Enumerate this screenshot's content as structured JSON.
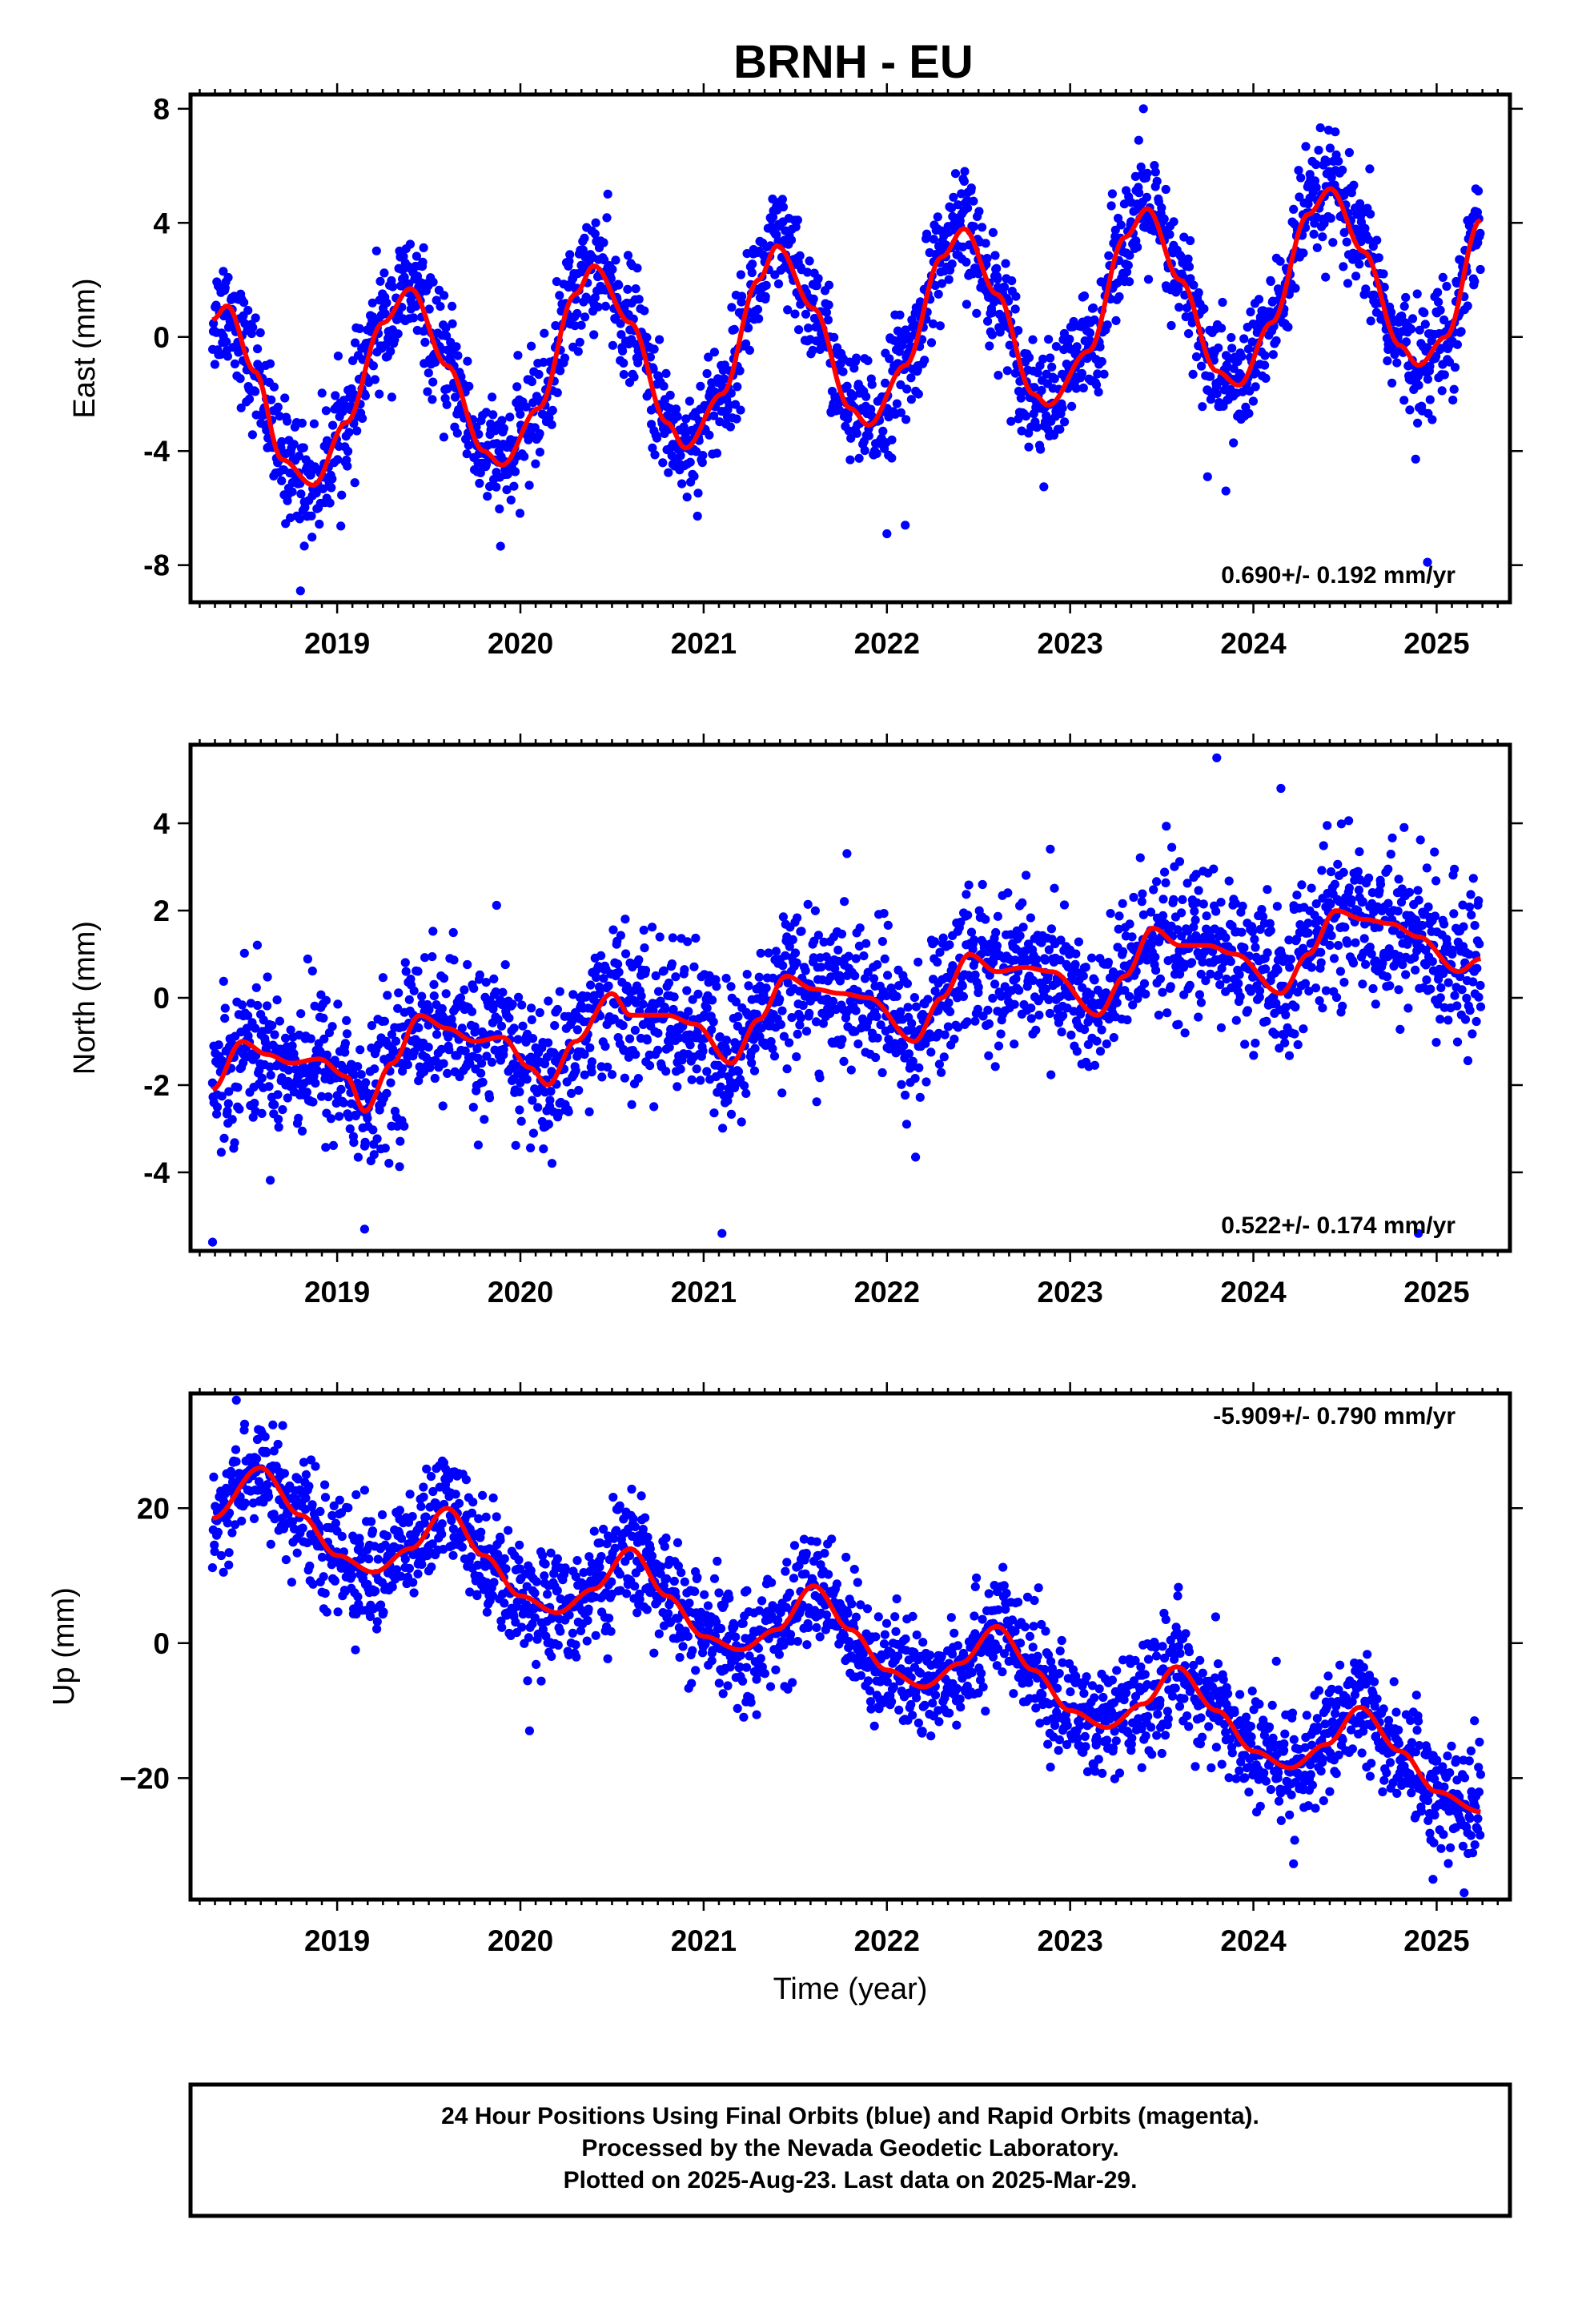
{
  "title": "BRNH - EU",
  "footer": {
    "line1": "24 Hour Positions Using Final Orbits (blue) and Rapid Orbits (magenta).",
    "line2": "Processed by the Nevada Geodetic Laboratory.",
    "line3": "Plotted on 2025-Aug-23. Last data on 2025-Mar-29."
  },
  "colors": {
    "final_orbits": "#0000ff",
    "rapid_orbits": "#ff00ff",
    "fit": "#ff0000"
  },
  "chart_data": [
    {
      "type": "scatter",
      "panel": "east",
      "ylabel": "East (mm)",
      "xlabel": "",
      "x_tick_labels": [
        "2019",
        "2020",
        "2021",
        "2022",
        "2023",
        "2024",
        "2025"
      ],
      "y_tick_labels": [
        "8",
        "4",
        "0",
        "-4",
        "-8"
      ],
      "y_ticks": [
        8,
        4,
        0,
        -4,
        -8
      ],
      "xlim": [
        2018.2,
        2025.4
      ],
      "ylim": [
        -9.3,
        8.5
      ],
      "rate_text": "0.690+/- 0.192 mm/yr",
      "data_range": [
        2018.32,
        2025.24
      ],
      "trend": -0.35,
      "fit_points": [
        [
          2018.32,
          0.6
        ],
        [
          2018.4,
          1.1
        ],
        [
          2018.55,
          -1.2
        ],
        [
          2018.7,
          -4.3
        ],
        [
          2018.87,
          -5.2
        ],
        [
          2019.05,
          -3.0
        ],
        [
          2019.25,
          0.5
        ],
        [
          2019.4,
          1.7
        ],
        [
          2019.6,
          -1.0
        ],
        [
          2019.8,
          -4.0
        ],
        [
          2019.9,
          -4.5
        ],
        [
          2020.1,
          -2.5
        ],
        [
          2020.3,
          1.5
        ],
        [
          2020.4,
          2.5
        ],
        [
          2020.6,
          0.5
        ],
        [
          2020.8,
          -3.0
        ],
        [
          2020.9,
          -3.9
        ],
        [
          2021.1,
          -2.0
        ],
        [
          2021.3,
          2.0
        ],
        [
          2021.4,
          3.2
        ],
        [
          2021.6,
          1.0
        ],
        [
          2021.8,
          -2.5
        ],
        [
          2021.9,
          -3.1
        ],
        [
          2022.1,
          -1.0
        ],
        [
          2022.3,
          2.8
        ],
        [
          2022.42,
          3.8
        ],
        [
          2022.6,
          1.5
        ],
        [
          2022.8,
          -2.0
        ],
        [
          2022.88,
          -2.4
        ],
        [
          2023.1,
          -0.5
        ],
        [
          2023.3,
          3.5
        ],
        [
          2023.42,
          4.5
        ],
        [
          2023.6,
          2.0
        ],
        [
          2023.8,
          -1.2
        ],
        [
          2023.92,
          -1.7
        ],
        [
          2024.1,
          0.5
        ],
        [
          2024.3,
          4.3
        ],
        [
          2024.42,
          5.2
        ],
        [
          2024.6,
          3.0
        ],
        [
          2024.8,
          -0.3
        ],
        [
          2024.9,
          -1.0
        ],
        [
          2025.05,
          0.0
        ],
        [
          2025.24,
          4.1
        ]
      ],
      "outliers": [
        [
          2024.95,
          -7.9
        ],
        [
          2023.75,
          -4.9
        ],
        [
          2023.85,
          -5.4
        ],
        [
          2022.1,
          -6.6
        ],
        [
          2022.0,
          -6.9
        ],
        [
          2018.8,
          -8.9
        ],
        [
          2023.4,
          8.0
        ]
      ]
    },
    {
      "type": "scatter",
      "panel": "north",
      "ylabel": "North (mm)",
      "xlabel": "",
      "x_tick_labels": [
        "2019",
        "2020",
        "2021",
        "2022",
        "2023",
        "2024",
        "2025"
      ],
      "y_tick_labels": [
        "4",
        "2",
        "0",
        "-2",
        "-4"
      ],
      "y_ticks": [
        4,
        2,
        0,
        -2,
        -4
      ],
      "xlim": [
        2018.2,
        2025.4
      ],
      "ylim": [
        -5.8,
        5.8
      ],
      "rate_text": "0.522+/- 0.174 mm/yr",
      "data_range": [
        2018.32,
        2025.24
      ],
      "trend": 0,
      "fit_points": [
        [
          2018.32,
          -2.1
        ],
        [
          2018.48,
          -1.0
        ],
        [
          2018.62,
          -1.3
        ],
        [
          2018.75,
          -1.5
        ],
        [
          2018.9,
          -1.4
        ],
        [
          2019.05,
          -1.8
        ],
        [
          2019.15,
          -2.6
        ],
        [
          2019.3,
          -1.5
        ],
        [
          2019.45,
          -0.4
        ],
        [
          2019.6,
          -0.7
        ],
        [
          2019.75,
          -1.0
        ],
        [
          2019.9,
          -0.9
        ],
        [
          2020.05,
          -1.6
        ],
        [
          2020.15,
          -2.0
        ],
        [
          2020.3,
          -1.0
        ],
        [
          2020.5,
          0.1
        ],
        [
          2020.6,
          -0.4
        ],
        [
          2020.8,
          -0.4
        ],
        [
          2020.95,
          -0.6
        ],
        [
          2021.15,
          -1.5
        ],
        [
          2021.3,
          -0.5
        ],
        [
          2021.45,
          0.5
        ],
        [
          2021.6,
          0.2
        ],
        [
          2021.75,
          0.1
        ],
        [
          2021.9,
          0.0
        ],
        [
          2022.15,
          -1.0
        ],
        [
          2022.3,
          0.0
        ],
        [
          2022.45,
          1.0
        ],
        [
          2022.6,
          0.6
        ],
        [
          2022.75,
          0.7
        ],
        [
          2022.9,
          0.6
        ],
        [
          2023.15,
          -0.4
        ],
        [
          2023.3,
          0.5
        ],
        [
          2023.45,
          1.6
        ],
        [
          2023.6,
          1.2
        ],
        [
          2023.75,
          1.2
        ],
        [
          2023.9,
          1.0
        ],
        [
          2024.15,
          0.1
        ],
        [
          2024.3,
          1.0
        ],
        [
          2024.45,
          2.0
        ],
        [
          2024.6,
          1.8
        ],
        [
          2024.75,
          1.7
        ],
        [
          2024.9,
          1.4
        ],
        [
          2025.12,
          0.6
        ],
        [
          2025.24,
          0.9
        ]
      ],
      "outliers": [
        [
          2018.32,
          -5.6
        ],
        [
          2021.1,
          -5.4
        ],
        [
          2023.8,
          5.5
        ],
        [
          2024.15,
          4.8
        ],
        [
          2019.15,
          -5.3
        ],
        [
          2024.9,
          -5.4
        ]
      ]
    },
    {
      "type": "scatter",
      "panel": "up",
      "ylabel": "Up (mm)",
      "xlabel": "Time (year)",
      "x_tick_labels": [
        "2019",
        "2020",
        "2021",
        "2022",
        "2023",
        "2024",
        "2025"
      ],
      "y_tick_labels": [
        "20",
        "0",
        "−20"
      ],
      "y_ticks": [
        20,
        0,
        -20
      ],
      "xlim": [
        2018.2,
        2025.4
      ],
      "ylim": [
        -38,
        37
      ],
      "rate_text": "-5.909+/- 0.790 mm/yr",
      "data_range": [
        2018.32,
        2025.24
      ],
      "trend": 0,
      "fit_points": [
        [
          2018.32,
          18.5
        ],
        [
          2018.58,
          26.0
        ],
        [
          2018.8,
          19.0
        ],
        [
          2019.0,
          13.0
        ],
        [
          2019.2,
          10.5
        ],
        [
          2019.4,
          14.0
        ],
        [
          2019.6,
          20.0
        ],
        [
          2019.8,
          13.0
        ],
        [
          2020.0,
          7.0
        ],
        [
          2020.2,
          4.5
        ],
        [
          2020.4,
          8.0
        ],
        [
          2020.6,
          14.0
        ],
        [
          2020.8,
          7.0
        ],
        [
          2021.0,
          1.0
        ],
        [
          2021.2,
          -1.0
        ],
        [
          2021.4,
          2.0
        ],
        [
          2021.6,
          8.5
        ],
        [
          2021.8,
          2.0
        ],
        [
          2022.0,
          -4.0
        ],
        [
          2022.2,
          -6.5
        ],
        [
          2022.4,
          -3.0
        ],
        [
          2022.6,
          2.5
        ],
        [
          2022.8,
          -4.0
        ],
        [
          2023.0,
          -10.0
        ],
        [
          2023.2,
          -12.5
        ],
        [
          2023.4,
          -9.0
        ],
        [
          2023.58,
          -3.5
        ],
        [
          2023.8,
          -10.0
        ],
        [
          2024.0,
          -16.0
        ],
        [
          2024.2,
          -18.5
        ],
        [
          2024.4,
          -15.0
        ],
        [
          2024.58,
          -9.5
        ],
        [
          2024.8,
          -16.0
        ],
        [
          2025.0,
          -22.0
        ],
        [
          2025.24,
          -25.0
        ]
      ],
      "outliers": [
        [
          2018.45,
          36
        ],
        [
          2019.1,
          -1
        ],
        [
          2020.05,
          -13
        ],
        [
          2024.98,
          -35
        ],
        [
          2025.15,
          -37
        ]
      ]
    }
  ]
}
